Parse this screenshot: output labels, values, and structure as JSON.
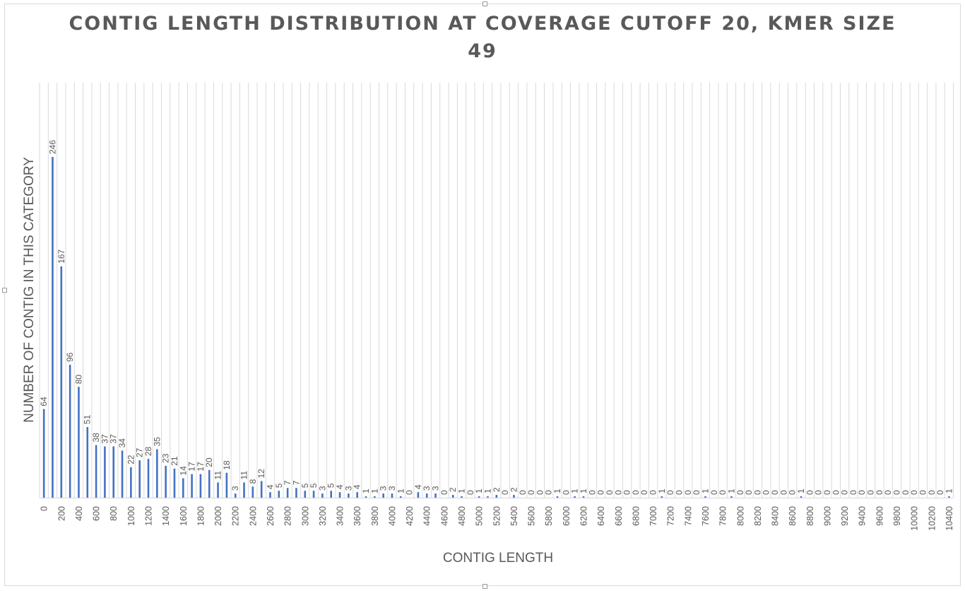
{
  "chart_data": {
    "type": "bar",
    "title_line1": "CONTIG LENGTH DISTRIBUTION AT COVERAGE CUTOFF 20, KMER SIZE",
    "title_line2": "49",
    "xlabel": "CONTIG LENGTH",
    "ylabel": "NUMBER OF CONTIG IN THIS CATEGORY",
    "categories": [
      0,
      100,
      200,
      300,
      400,
      500,
      600,
      700,
      800,
      900,
      1000,
      1100,
      1200,
      1300,
      1400,
      1500,
      1600,
      1700,
      1800,
      1900,
      2000,
      2100,
      2200,
      2300,
      2400,
      2500,
      2600,
      2700,
      2800,
      2900,
      3000,
      3100,
      3200,
      3300,
      3400,
      3500,
      3600,
      3700,
      3800,
      3900,
      4000,
      4100,
      4200,
      4300,
      4400,
      4500,
      4600,
      4700,
      4800,
      4900,
      5000,
      5100,
      5200,
      5300,
      5400,
      5500,
      5600,
      5700,
      5800,
      5900,
      6000,
      6100,
      6200,
      6300,
      6400,
      6500,
      6600,
      6700,
      6800,
      6900,
      7000,
      7100,
      7200,
      7300,
      7400,
      7500,
      7600,
      7700,
      7800,
      7900,
      8000,
      8100,
      8200,
      8300,
      8400,
      8500,
      8600,
      8700,
      8800,
      8900,
      9000,
      9100,
      9200,
      9300,
      9400,
      9500,
      9600,
      9700,
      9800,
      9900,
      10000,
      10100,
      10200,
      10300,
      10400
    ],
    "tick_labels": [
      "0",
      "200",
      "400",
      "600",
      "800",
      "1000",
      "1200",
      "1400",
      "1600",
      "1800",
      "2000",
      "2200",
      "2400",
      "2600",
      "2800",
      "3000",
      "3200",
      "3400",
      "3600",
      "3800",
      "4000",
      "4200",
      "4400",
      "4600",
      "4800",
      "5000",
      "5200",
      "5400",
      "5600",
      "5800",
      "6000",
      "6200",
      "6400",
      "6600",
      "6800",
      "7000",
      "7200",
      "7400",
      "7600",
      "7800",
      "8000",
      "8200",
      "8400",
      "8600",
      "8800",
      "9000",
      "9200",
      "9400",
      "9600",
      "9800",
      "10000",
      "10200",
      "10400"
    ],
    "values": [
      64,
      246,
      167,
      96,
      80,
      51,
      38,
      37,
      37,
      34,
      22,
      27,
      28,
      35,
      23,
      21,
      14,
      17,
      17,
      20,
      11,
      18,
      3,
      11,
      8,
      12,
      4,
      5,
      7,
      7,
      5,
      5,
      3,
      5,
      4,
      3,
      4,
      1,
      1,
      3,
      3,
      1,
      0,
      4,
      3,
      3,
      0,
      2,
      1,
      0,
      1,
      1,
      2,
      0,
      2,
      0,
      0,
      0,
      0,
      1,
      0,
      1,
      1,
      0,
      0,
      0,
      0,
      0,
      0,
      0,
      0,
      1,
      0,
      0,
      0,
      0,
      1,
      0,
      0,
      1,
      0,
      0,
      0,
      0,
      0,
      0,
      0,
      1,
      0,
      0,
      0,
      0,
      0,
      0,
      0,
      0,
      0,
      0,
      0,
      0,
      0,
      0,
      0,
      0,
      1
    ],
    "ylim": [
      0,
      300
    ],
    "grid": true,
    "legend": "none",
    "bar_color": "#4472C4",
    "grid_color": "#d9d9d9",
    "text_color": "#595959"
  }
}
